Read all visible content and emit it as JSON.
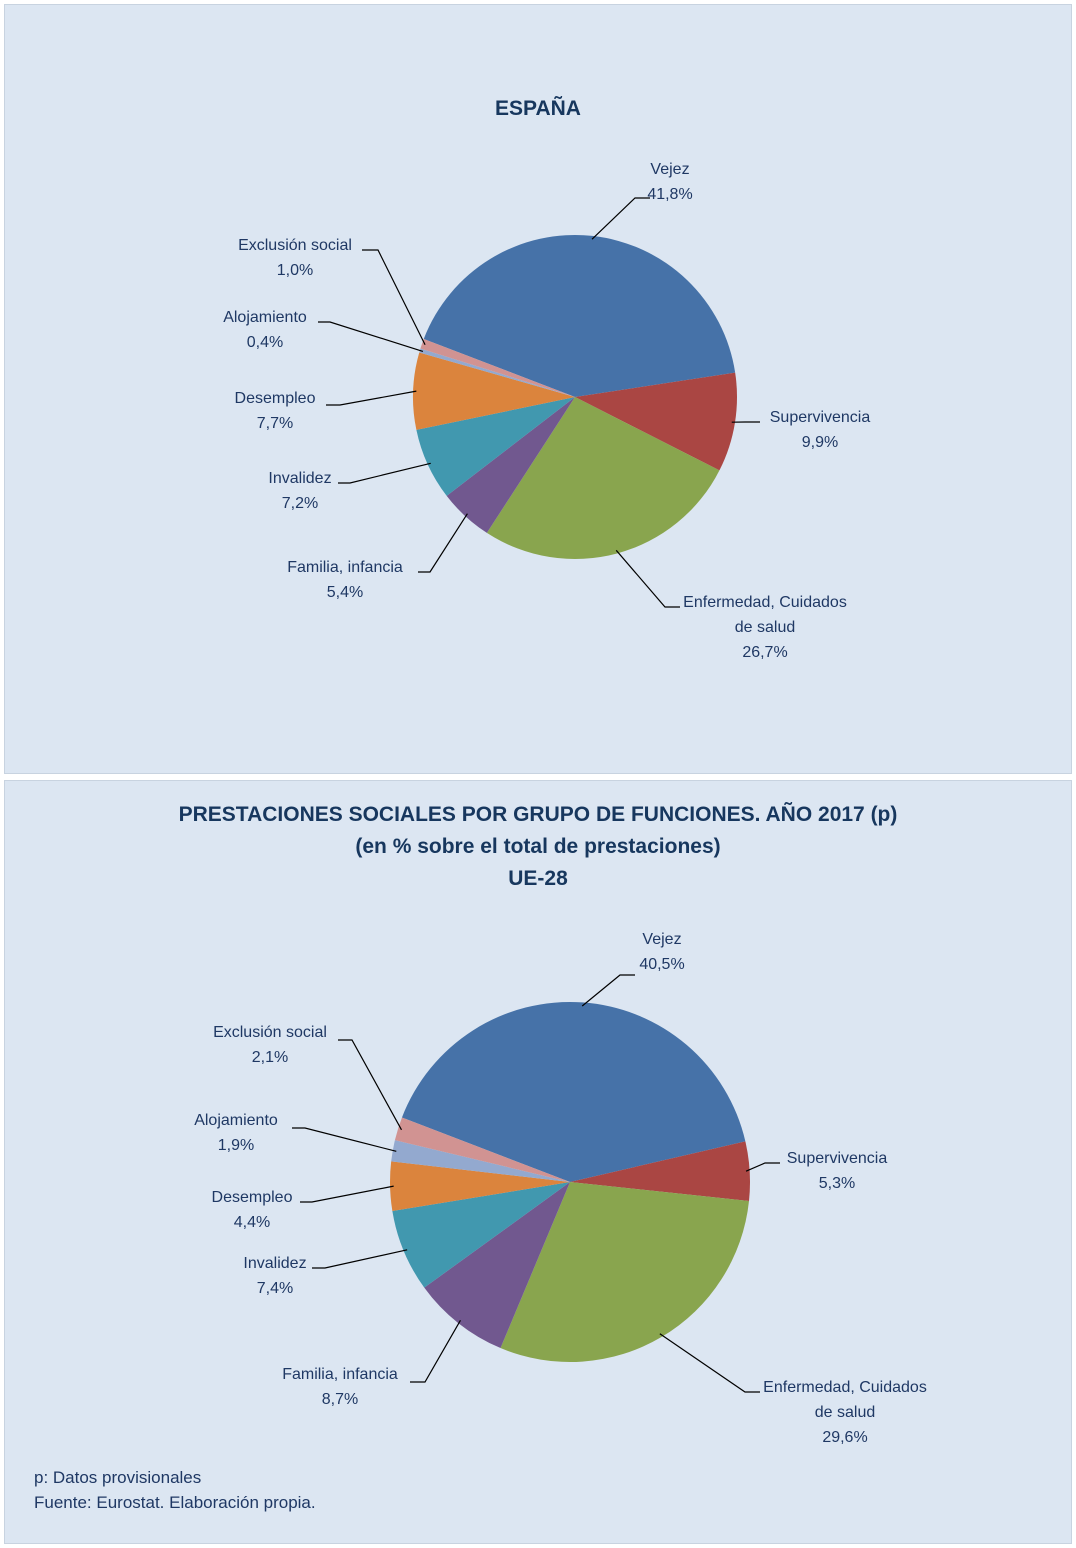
{
  "header": {
    "title": "PRESTACIONES SOCIALES POR GRUPO DE FUNCIONES. AÑO 2017 (p)",
    "subtitle": "(en % sobre el total de prestaciones)"
  },
  "chart_data": [
    {
      "type": "pie",
      "title": "ESPAÑA",
      "categories": [
        "Vejez",
        "Supervivencia",
        "Enfermedad, Cuidados de salud",
        "Familia, infancia",
        "Invalidez",
        "Desempleo",
        "Alojamiento",
        "Exclusión social"
      ],
      "values": [
        41.8,
        9.9,
        26.7,
        5.4,
        7.2,
        7.7,
        0.4,
        1.0
      ],
      "value_labels": [
        "41,8%",
        "9,9%",
        "26,7%",
        "5,4%",
        "7,2%",
        "7,7%",
        "0,4%",
        "1,0%"
      ],
      "colors": [
        "#4672a8",
        "#aa4643",
        "#89a54e",
        "#71588f",
        "#4198af",
        "#db843d",
        "#93a9cf",
        "#d19392"
      ]
    },
    {
      "type": "pie",
      "title": "UE-28",
      "categories": [
        "Vejez",
        "Supervivencia",
        "Enfermedad, Cuidados de salud",
        "Familia, infancia",
        "Invalidez",
        "Desempleo",
        "Alojamiento",
        "Exclusión social"
      ],
      "values": [
        40.5,
        5.3,
        29.6,
        8.7,
        7.4,
        4.4,
        1.9,
        2.1
      ],
      "value_labels": [
        "40,5%",
        "5,3%",
        "29,6%",
        "8,7%",
        "7,4%",
        "4,4%",
        "1,9%",
        "2,1%"
      ],
      "colors": [
        "#4672a8",
        "#aa4643",
        "#89a54e",
        "#71588f",
        "#4198af",
        "#db843d",
        "#93a9cf",
        "#d19392"
      ]
    }
  ],
  "notes": [
    "p: Datos provisionales",
    "Fuente: Eurostat. Elaboración propia."
  ]
}
